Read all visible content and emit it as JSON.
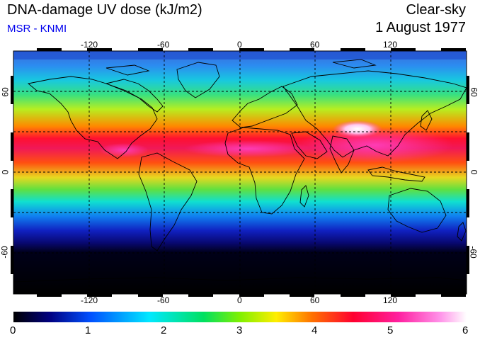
{
  "header": {
    "title": "DNA-damage UV dose (kJ/m2)",
    "source": "MSR - KNMI",
    "condition": "Clear-sky",
    "date": "1 August 1977"
  },
  "map": {
    "longitude_labels": [
      "-120",
      "-60",
      "0",
      "60",
      "120"
    ],
    "latitude_labels": [
      "60",
      "0",
      "-60"
    ]
  },
  "colorbar": {
    "tick_labels": [
      "0",
      "1",
      "2",
      "3",
      "4",
      "5",
      "6"
    ],
    "min": 0,
    "max": 6
  },
  "colors": {
    "title_text": "#000000",
    "source_text": "#0000ee"
  }
}
